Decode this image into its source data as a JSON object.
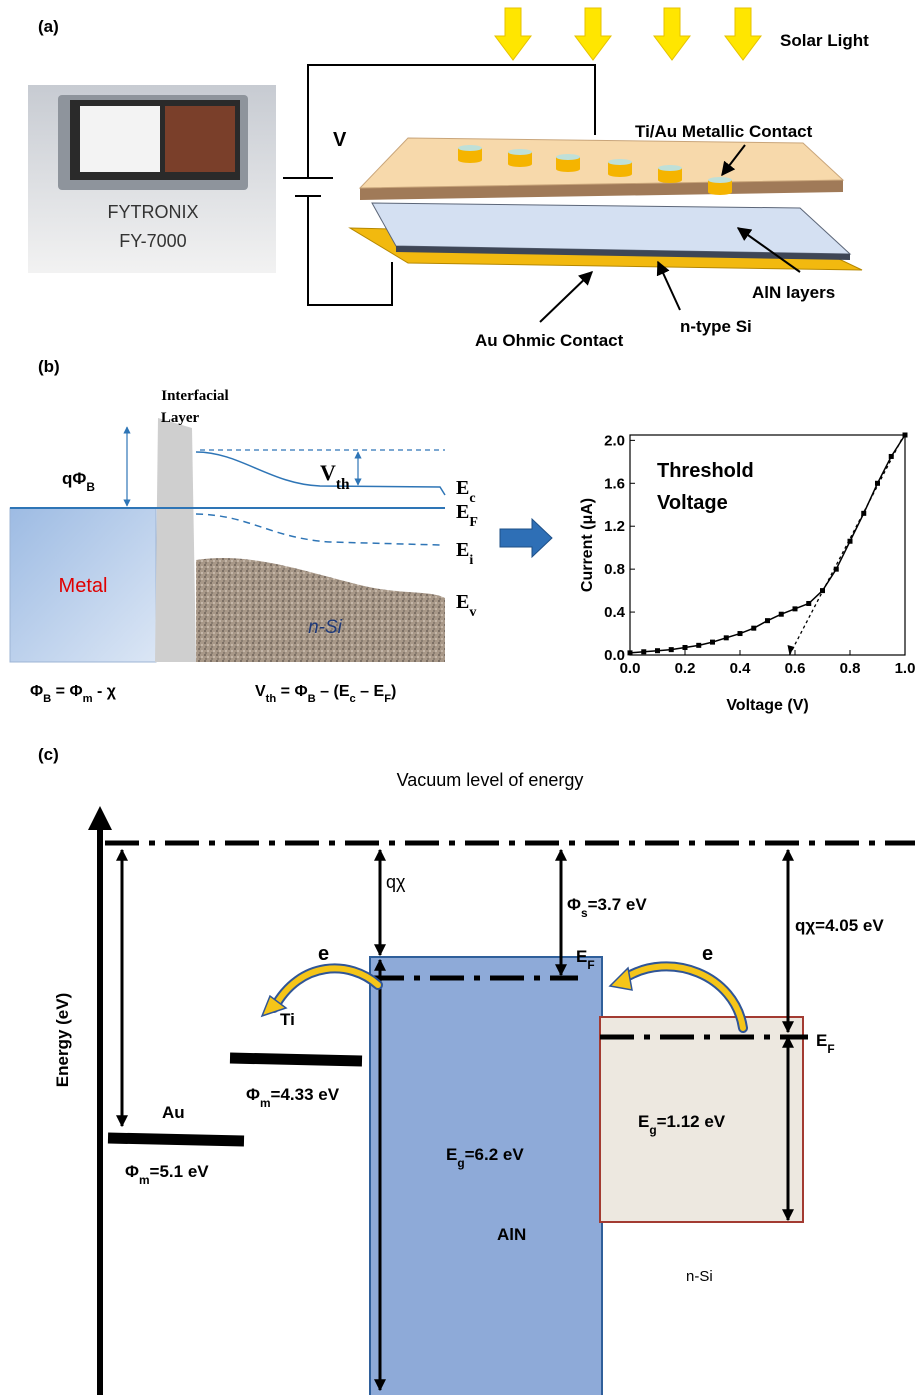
{
  "panel_a": {
    "label": "(a)",
    "solar_light": "Solar Light",
    "metallic_contact": "Ti/Au Metallic Contact",
    "voltage_source": "V",
    "instrument": [
      "FYTRONIX",
      "FY-7000"
    ],
    "aln_layers": "AlN layers",
    "n_type_si": "n-type Si",
    "ohmic_contact": "Au Ohmic Contact"
  },
  "panel_b": {
    "label": "(b)",
    "interfacial_layer": [
      "Interfacial",
      "Layer"
    ],
    "barrier": [
      "qΦ",
      "B"
    ],
    "threshold": [
      "V",
      "th"
    ],
    "ec": [
      "E",
      "c"
    ],
    "ef": [
      "E",
      "F"
    ],
    "ei": [
      "E",
      "i"
    ],
    "ev": [
      "E",
      "v"
    ],
    "metal": "Metal",
    "semiconductor": "n-Si",
    "barrier_equation": [
      "Φ",
      "B",
      " = Φ",
      "m",
      " - χ"
    ],
    "threshold_equation": [
      "V",
      "th",
      " = Φ",
      "B",
      " – (E",
      "c",
      " – E",
      "F",
      ")"
    ]
  },
  "chart_data": {
    "type": "line",
    "x": [
      0,
      0.05,
      0.1,
      0.15,
      0.2,
      0.25,
      0.3,
      0.35,
      0.4,
      0.45,
      0.5,
      0.55,
      0.6,
      0.65,
      0.7,
      0.75,
      0.8,
      0.85,
      0.9,
      0.95,
      1.0
    ],
    "values": [
      0.02,
      0.03,
      0.04,
      0.05,
      0.07,
      0.09,
      0.12,
      0.16,
      0.2,
      0.25,
      0.32,
      0.38,
      0.43,
      0.48,
      0.6,
      0.8,
      1.06,
      1.32,
      1.6,
      1.85,
      2.05
    ],
    "color": "#000000",
    "fit": {
      "x": [
        0.58,
        1.0
      ],
      "values": [
        0,
        2.07
      ]
    },
    "annotation": [
      "Threshold",
      "Voltage"
    ],
    "x_label": "Voltage (V)",
    "y_label": "Current (μA)",
    "xlim": [
      0,
      1
    ],
    "ylim": [
      0,
      2.05
    ],
    "xticks": [
      {
        "value": 0,
        "label": "0.0"
      },
      0.2,
      0.4,
      0.6,
      0.8,
      {
        "value": 1,
        "label": "1.0"
      }
    ],
    "yticks": [
      {
        "value": 0,
        "label": "0.0"
      },
      0.4,
      0.8,
      1.2,
      1.6,
      {
        "value": 2,
        "label": "2.0"
      }
    ]
  },
  "panel_c": {
    "label": "(c)",
    "vacuum_level": "Vacuum level of energy",
    "energy_axis": "Energy (eV)",
    "aln_affinity": "qχ",
    "aln_work_function": [
      "Φ",
      "s",
      "=3.7 eV"
    ],
    "si_affinity": "qχ=4.05 eV",
    "electron_ti": "e",
    "electron_si": "e",
    "ti": "Ti",
    "au": "Au",
    "ti_work_function": [
      "Φ",
      "m",
      "=4.33 eV"
    ],
    "au_work_function": [
      "Φ",
      "m",
      "=5.1 eV"
    ],
    "aln_fermi": [
      "E",
      "F"
    ],
    "si_fermi": [
      "E",
      "F"
    ],
    "aln_gap": [
      "E",
      "g",
      "=6.2 eV"
    ],
    "aln": "AlN",
    "si_gap": [
      "E",
      "g",
      "=1.12 eV"
    ],
    "si": "n-Si"
  }
}
